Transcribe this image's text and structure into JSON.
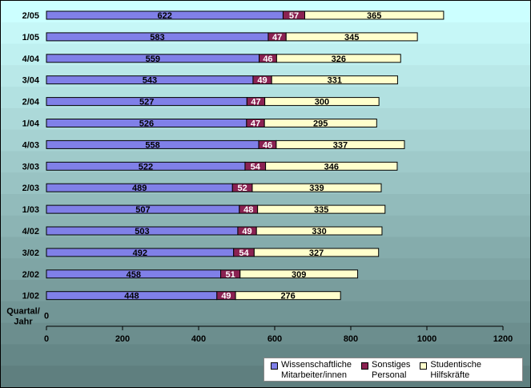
{
  "chart_data": {
    "type": "bar",
    "orientation": "horizontal",
    "stacked": true,
    "category_axis_title": "Quartal/\nJahr",
    "categories": [
      "2/05",
      "1/05",
      "4/04",
      "3/04",
      "2/04",
      "1/04",
      "4/03",
      "3/03",
      "2/03",
      "1/03",
      "4/02",
      "3/02",
      "2/02",
      "1/02"
    ],
    "series": [
      {
        "name": "Wissenschaftliche\nMitarbeiter/innen",
        "color": "#8080E8",
        "values": [
          622,
          583,
          559,
          543,
          527,
          526,
          558,
          522,
          489,
          507,
          503,
          492,
          458,
          448
        ]
      },
      {
        "name": "Sonstiges\nPersonal",
        "color": "#8B2252",
        "values": [
          57,
          47,
          46,
          49,
          47,
          47,
          46,
          54,
          52,
          48,
          49,
          54,
          51,
          49
        ]
      },
      {
        "name": "Studentische\nHilfskräfte",
        "color": "#FFFFCC",
        "values": [
          365,
          345,
          326,
          331,
          300,
          295,
          337,
          346,
          339,
          335,
          330,
          327,
          309,
          276
        ]
      }
    ],
    "xlim": [
      0,
      1200
    ],
    "xticks": [
      0,
      200,
      400,
      600,
      800,
      1000,
      1200
    ],
    "zero_label": "0",
    "grid": false,
    "legend_position": "bottom-right",
    "colors": {
      "background_top": "#CCFFFF",
      "background_bottom": "#5F7F7F"
    }
  }
}
